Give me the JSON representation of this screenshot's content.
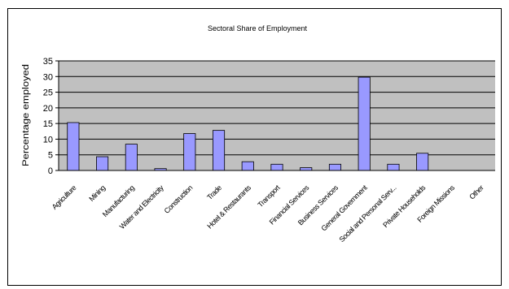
{
  "chart_data": {
    "type": "bar",
    "title": "Sectoral Share of Employment",
    "ylabel": "Percentage employed",
    "xlabel": "",
    "ylim": [
      0,
      35
    ],
    "yticks": [
      0,
      5,
      10,
      15,
      20,
      25,
      30,
      35
    ],
    "grid": true,
    "legend": "none",
    "categories": [
      "Agriculture",
      "Mining",
      "Manufacturing",
      "Water and Electricity",
      "Construction",
      "Trade",
      "Hotel & Restaurants",
      "Transport",
      "Financial Services",
      "Business Services",
      "General Government",
      "Social and Personal Serv...",
      "Private Households",
      "Foreign Missions",
      "Other"
    ],
    "values": [
      15.3,
      4.4,
      8.4,
      0.6,
      11.8,
      12.8,
      2.8,
      2.0,
      0.9,
      2.0,
      29.8,
      2.0,
      5.5,
      0,
      0
    ],
    "colors": {
      "plot_bg": "#c0c0c0",
      "bar_fill": "#9999ff",
      "bar_stroke": "#000000",
      "grid": "#000000"
    }
  }
}
